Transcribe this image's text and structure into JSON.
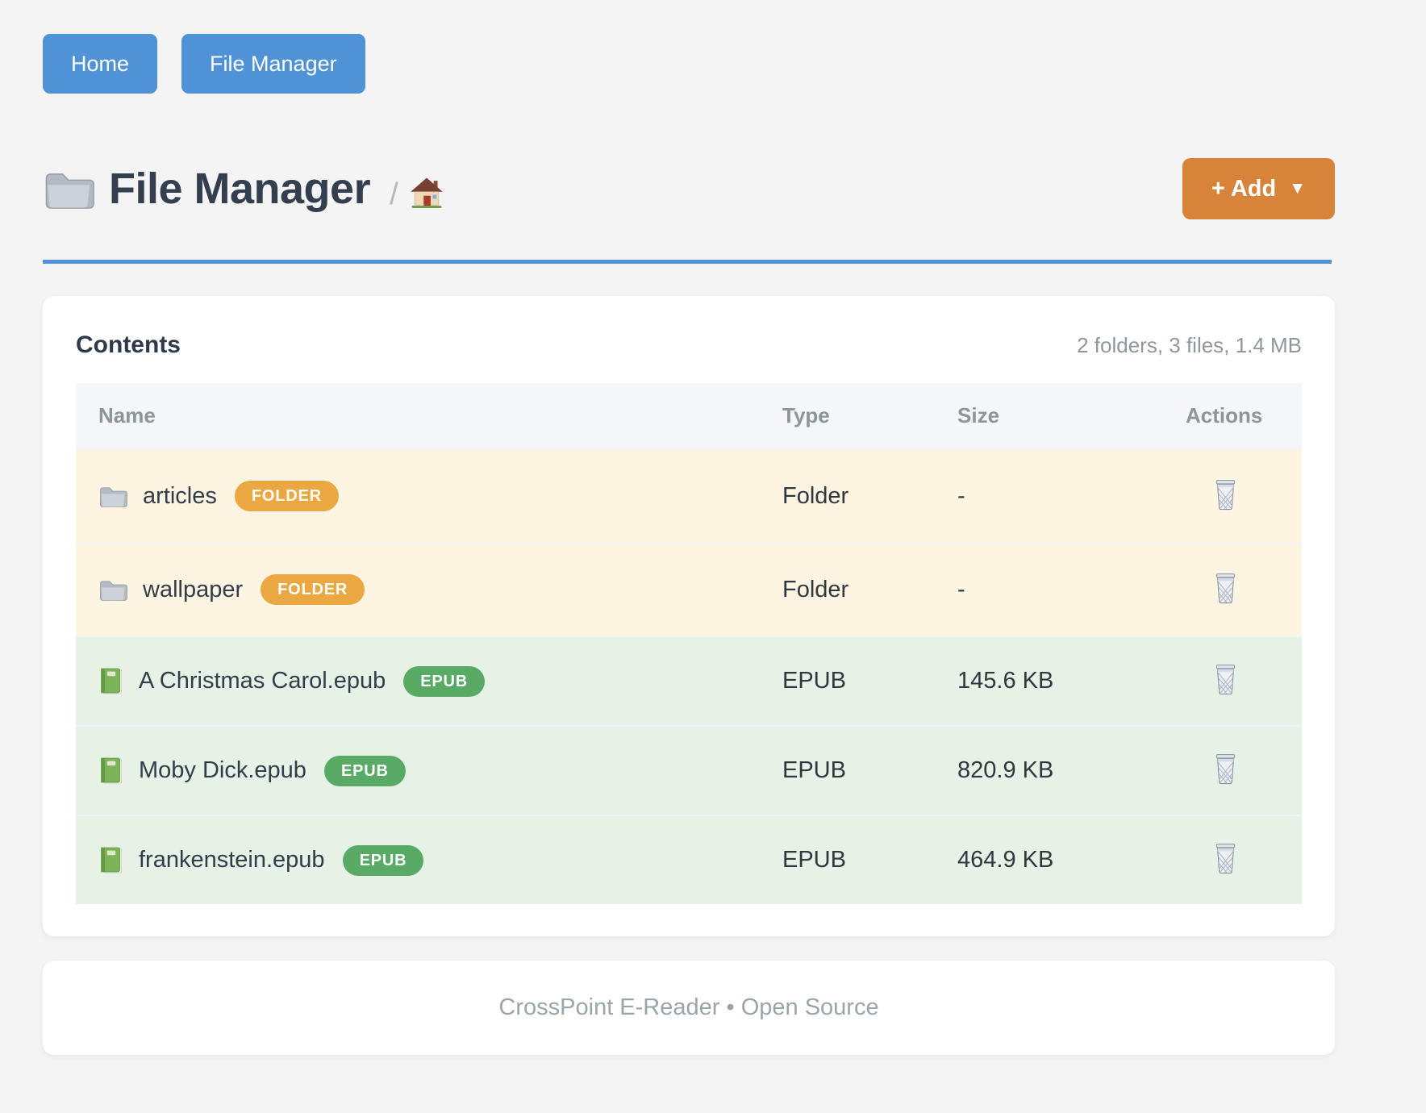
{
  "colors": {
    "accent_blue": "#4f93d6",
    "add_button_orange": "#d7833a",
    "folder_badge_orange": "#eba741",
    "epub_badge_green": "#58aa64",
    "folder_row_bg": "#fdf5e1",
    "epub_row_bg": "#e7f2e6",
    "page_bg": "#f4f4f5"
  },
  "nav": {
    "buttons": [
      {
        "label": "Home"
      },
      {
        "label": "File Manager"
      }
    ]
  },
  "header": {
    "title": "File Manager",
    "title_icon": "folder-icon",
    "breadcrumb_separator": "/",
    "breadcrumb_home_icon": "house-icon",
    "add_button": {
      "label": "+ Add",
      "caret": "▼"
    }
  },
  "contents_card": {
    "title": "Contents",
    "summary": "2 folders, 3 files, 1.4 MB",
    "table": {
      "columns": [
        "Name",
        "Type",
        "Size",
        "Actions"
      ],
      "rows": [
        {
          "icon": "folder-icon",
          "name": "articles",
          "badge": "FOLDER",
          "kind": "folder",
          "type": "Folder",
          "size": "-"
        },
        {
          "icon": "folder-icon",
          "name": "wallpaper",
          "badge": "FOLDER",
          "kind": "folder",
          "type": "Folder",
          "size": "-"
        },
        {
          "icon": "book-icon",
          "name": "A Christmas Carol.epub",
          "badge": "EPUB",
          "kind": "epub",
          "type": "EPUB",
          "size": "145.6 KB"
        },
        {
          "icon": "book-icon",
          "name": "Moby Dick.epub",
          "badge": "EPUB",
          "kind": "epub",
          "type": "EPUB",
          "size": "820.9 KB"
        },
        {
          "icon": "book-icon",
          "name": "frankenstein.epub",
          "badge": "EPUB",
          "kind": "epub",
          "type": "EPUB",
          "size": "464.9 KB"
        }
      ]
    }
  },
  "footer": {
    "text": "CrossPoint E-Reader • Open Source"
  }
}
